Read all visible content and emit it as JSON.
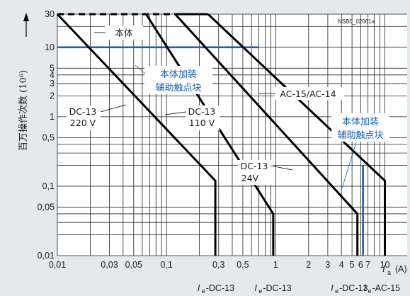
{
  "chart_data": {
    "type": "line",
    "ylabel": "百万操作次数 (10⁶)",
    "xlabel": "I",
    "xlabel_sub": "a",
    "xlabel_unit": "(A)",
    "diagram_id": "NSB0_02061a",
    "xscale": "log",
    "yscale": "log",
    "xlim": [
      0.01,
      16
    ],
    "ylim": [
      0.01,
      30
    ],
    "x_ticks": [
      {
        "v": 0.01,
        "label": "0,01"
      },
      {
        "v": 0.03,
        "label": "0,03"
      },
      {
        "v": 0.05,
        "label": "0,05"
      },
      {
        "v": 0.1,
        "label": "0,1"
      },
      {
        "v": 0.3,
        "label": "0,3"
      },
      {
        "v": 0.5,
        "label": "0,5"
      },
      {
        "v": 1,
        "label": "1"
      },
      {
        "v": 2,
        "label": "2"
      },
      {
        "v": 3,
        "label": "3"
      },
      {
        "v": 4,
        "label": "4"
      },
      {
        "v": 5,
        "label": "5"
      },
      {
        "v": 6,
        "label": "6"
      },
      {
        "v": 7,
        "label": "7"
      },
      {
        "v": 10,
        "label": "10"
      }
    ],
    "x_grid": [
      0.01,
      0.02,
      0.03,
      0.04,
      0.05,
      0.06,
      0.07,
      0.08,
      0.09,
      0.1,
      0.2,
      0.3,
      0.4,
      0.5,
      0.6,
      0.7,
      0.8,
      0.9,
      1,
      2,
      3,
      4,
      5,
      6,
      7,
      8,
      9,
      10
    ],
    "y_ticks": [
      {
        "v": 30,
        "label": "30"
      },
      {
        "v": 10,
        "label": "10"
      },
      {
        "v": 5,
        "label": "5"
      },
      {
        "v": 4,
        "label": "4"
      },
      {
        "v": 3,
        "label": "3"
      },
      {
        "v": 2,
        "label": "2"
      },
      {
        "v": 1,
        "label": "1"
      },
      {
        "v": 0.5,
        "label": "0,5"
      },
      {
        "v": 0.1,
        "label": "0,1"
      },
      {
        "v": 0.05,
        "label": "0,05"
      },
      {
        "v": 0.01,
        "label": "0,01"
      }
    ],
    "y_grid": [
      0.01,
      0.02,
      0.03,
      0.04,
      0.05,
      0.1,
      0.2,
      0.3,
      0.4,
      0.5,
      1,
      2,
      3,
      4,
      5,
      10,
      20,
      30
    ],
    "series": [
      {
        "label": "DC-13 220 V",
        "color": "#000000",
        "points": [
          [
            0.01,
            30
          ],
          [
            0.28,
            0.12
          ],
          [
            0.28,
            0.01
          ]
        ]
      },
      {
        "label": "DC-13 110 V",
        "color": "#000000",
        "points": [
          [
            0.065,
            30
          ],
          [
            0.95,
            0.04
          ],
          [
            0.95,
            0.01
          ]
        ]
      },
      {
        "label": "DC-13 24V",
        "color": "#000000",
        "points": [
          [
            0.12,
            30
          ],
          [
            5.6,
            0.04
          ],
          [
            5.6,
            0.01
          ]
        ]
      },
      {
        "label": "AC-15/AC-14",
        "color": "#000000",
        "points": [
          [
            0.24,
            30
          ],
          [
            10,
            0.12
          ],
          [
            10,
            0.01
          ]
        ]
      }
    ],
    "dashed_top": {
      "x0": 0.01,
      "x1": 0.13,
      "y": 30
    },
    "blue_lines": [
      {
        "points": [
          [
            0.01,
            10
          ],
          [
            0.7,
            10
          ]
        ]
      },
      {
        "points": [
          [
            6.3,
            0.01
          ],
          [
            6.3,
            0.2
          ]
        ]
      }
    ],
    "annotations": {
      "base": "本体",
      "aux_line1": "本体加装",
      "aux_line2": "辅助触点块",
      "aux2_line1": "本体加装",
      "aux2_line2": "辅助触点块",
      "ac15": "AC-15/AC-14",
      "dc13_220_a": "DC-13",
      "dc13_220_b": "220 V",
      "dc13_110_a": "DC-13",
      "dc13_110_b": "110 V",
      "dc13_24_a": "DC-13",
      "dc13_24_b": "24V"
    },
    "bottom_labels": [
      {
        "x": 0.3,
        "text": "-DC-13",
        "sub": "e"
      },
      {
        "x": 1,
        "text": "-DC-13",
        "sub": "e"
      },
      {
        "x": 5,
        "text": "-DC-13",
        "sub": "e"
      },
      {
        "x": 10,
        "text": "-AC-15",
        "sub": "e"
      }
    ]
  }
}
